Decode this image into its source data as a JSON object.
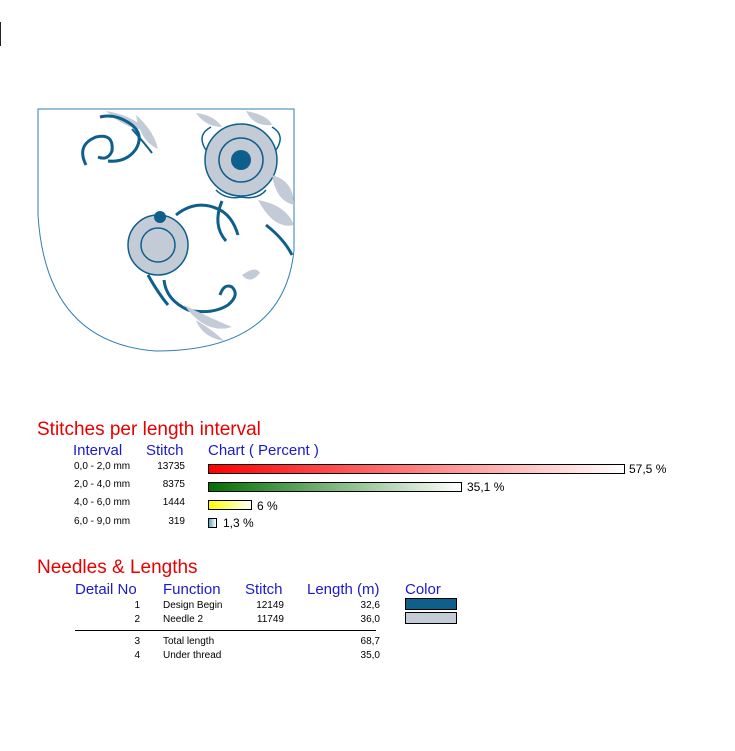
{
  "colors": {
    "title_red": "#e60000",
    "header_blue": "#1a1acc",
    "design_blue": "#0e5f8c",
    "design_gray": "#c3cbd6"
  },
  "stitches": {
    "title": "Stitches per length interval",
    "headers": {
      "interval": "Interval",
      "stitch": "Stitch",
      "chart": "Chart ( Percent )"
    },
    "rows": [
      {
        "interval": "0,0 - 2,0 mm",
        "stitch": "13735",
        "percent_label": "57,5 %",
        "percent": 57.5
      },
      {
        "interval": "2,0 - 4,0 mm",
        "stitch": "8375",
        "percent_label": "35,1 %",
        "percent": 35.1
      },
      {
        "interval": "4,0 - 6,0 mm",
        "stitch": "1444",
        "percent_label": "6 %",
        "percent": 6
      },
      {
        "interval": "6,0 - 9,0 mm",
        "stitch": "319",
        "percent_label": "1,3 %",
        "percent": 1.3
      }
    ]
  },
  "needles": {
    "title": "Needles & Lengths",
    "headers": {
      "detail": "Detail No",
      "function": "Function",
      "stitch": "Stitch",
      "length": "Length (m)",
      "color": "Color"
    },
    "rows": [
      {
        "no": "1",
        "function": "Design Begin",
        "stitch": "12149",
        "length": "32,6",
        "color": "#0e5f8c"
      },
      {
        "no": "2",
        "function": "Needle 2",
        "stitch": "11749",
        "length": "36,0",
        "color": "#c3cbd6"
      }
    ],
    "totals": [
      {
        "no": "3",
        "function": "Total length",
        "length": "68,7"
      },
      {
        "no": "4",
        "function": "Under thread",
        "length": "35,0"
      }
    ]
  }
}
